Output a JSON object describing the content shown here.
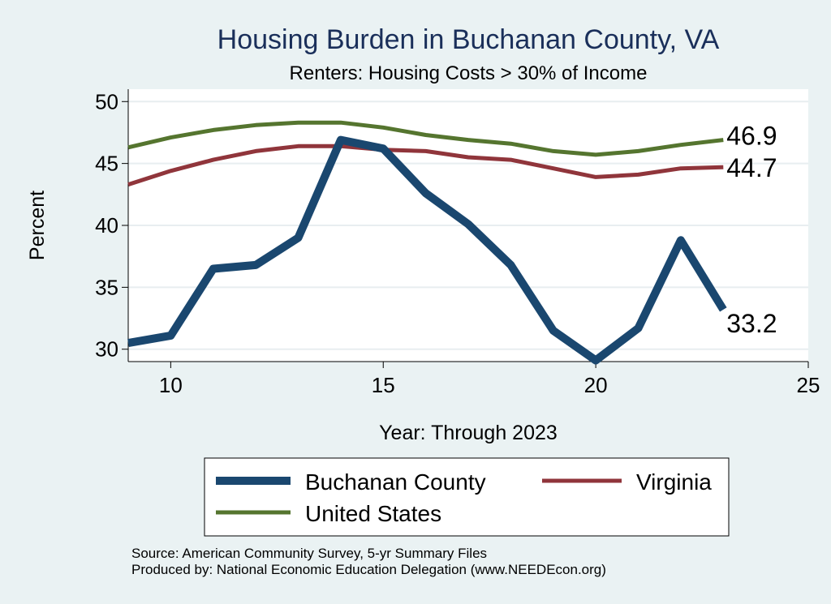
{
  "chart_data": {
    "type": "line",
    "title": "Housing Burden in Buchanan County, VA",
    "subtitle": "Renters: Housing Costs > 30% of Income",
    "xlabel": "Year: Through 2023",
    "ylabel": "Percent",
    "xlim": [
      9,
      25
    ],
    "ylim": [
      29,
      51
    ],
    "xticks": [
      10,
      15,
      20,
      25
    ],
    "yticks": [
      30,
      35,
      40,
      45,
      50
    ],
    "grid": true,
    "legend_position": "bottom",
    "x": [
      9,
      10,
      11,
      12,
      13,
      14,
      15,
      16,
      17,
      18,
      19,
      20,
      21,
      22,
      23
    ],
    "series": [
      {
        "name": "Buchanan County",
        "color": "#1a476f",
        "values": [
          30.5,
          31.1,
          36.5,
          36.8,
          39.0,
          46.9,
          46.2,
          42.6,
          40.1,
          36.8,
          31.5,
          29.1,
          31.7,
          38.8,
          33.2
        ],
        "end_label": "33.2"
      },
      {
        "name": "Virginia",
        "color": "#90353b",
        "values": [
          43.3,
          44.4,
          45.3,
          46.0,
          46.4,
          46.4,
          46.1,
          46.0,
          45.5,
          45.3,
          44.6,
          43.9,
          44.1,
          44.6,
          44.7
        ],
        "end_label": "44.7"
      },
      {
        "name": "United States",
        "color": "#55752f",
        "values": [
          46.3,
          47.1,
          47.7,
          48.1,
          48.3,
          48.3,
          47.9,
          47.3,
          46.9,
          46.6,
          46.0,
          45.7,
          46.0,
          46.5,
          46.9
        ],
        "end_label": "46.9"
      }
    ],
    "source": "Source: American Community Survey, 5-yr Summary Files",
    "producer": "Produced by: National Economic Education Delegation (www.NEEDEcon.org)"
  }
}
